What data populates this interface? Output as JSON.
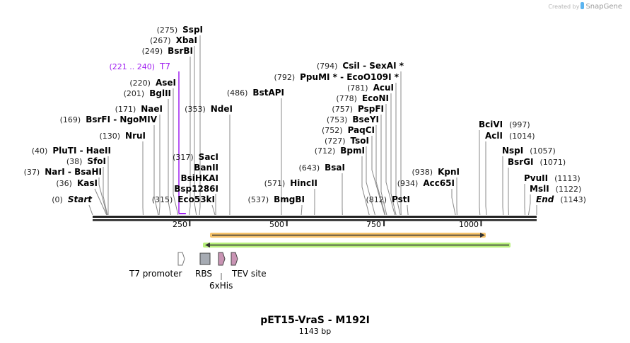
{
  "credit": {
    "prefix": "Created by",
    "brand": "SnapGene"
  },
  "title": "pET15-VraS - M192I",
  "length_label": "1143 bp",
  "sequence_length": 1143,
  "ruler_ticks": [
    "250",
    "500",
    "750",
    "1000"
  ],
  "colors": {
    "purple": "#a020f0",
    "orange_feature": "#f7c46c",
    "green_feature": "#b8f07c",
    "tag_pink": "#c994b4",
    "rbs_gray": "#a6abb3"
  },
  "sites": [
    {
      "pos": 275,
      "num": "(275)",
      "name": "SspI"
    },
    {
      "pos": 267,
      "num": "(267)",
      "name": "XbaI"
    },
    {
      "pos": 249,
      "num": "(249)",
      "name": "BsrBI"
    },
    {
      "pos": 221,
      "num": "(221 .. 240)",
      "name": "T7"
    },
    {
      "pos": 220,
      "num": "(220)",
      "name": "AseI"
    },
    {
      "pos": 201,
      "num": "(201)",
      "name": "BglII"
    },
    {
      "pos": 171,
      "num": "(171)",
      "name": "NaeI"
    },
    {
      "pos": 169,
      "num": "(169)",
      "name": "BsrFI  - NgoMIV"
    },
    {
      "pos": 130,
      "num": "(130)",
      "name": "NruI"
    },
    {
      "pos": 40,
      "num": "(40)",
      "name": "PluTI  - HaeII"
    },
    {
      "pos": 38,
      "num": "(38)",
      "name": "SfoI"
    },
    {
      "pos": 37,
      "num": "(37)",
      "name": "NarI  - BsaHI"
    },
    {
      "pos": 36,
      "num": "(36)",
      "name": "KasI"
    },
    {
      "pos": 0,
      "num": "(0)",
      "name": "Start"
    },
    {
      "pos": 317,
      "num": "(317)",
      "name": "SacI"
    },
    {
      "pos": 317,
      "num": "",
      "name": "BanII"
    },
    {
      "pos": 317,
      "num": "",
      "name": "BsiHKAI"
    },
    {
      "pos": 317,
      "num": "",
      "name": "Bsp1286I"
    },
    {
      "pos": 315,
      "num": "(315)",
      "name": "Eco53kI"
    },
    {
      "pos": 353,
      "num": "(353)",
      "name": "NdeI"
    },
    {
      "pos": 486,
      "num": "(486)",
      "name": "BstAPI"
    },
    {
      "pos": 794,
      "num": "(794)",
      "name": "CsiI  - SexAI *"
    },
    {
      "pos": 792,
      "num": "(792)",
      "name": "PpuMI * - EcoO109I *"
    },
    {
      "pos": 781,
      "num": "(781)",
      "name": "AcuI"
    },
    {
      "pos": 778,
      "num": "(778)",
      "name": "EcoNI"
    },
    {
      "pos": 757,
      "num": "(757)",
      "name": "PspFI"
    },
    {
      "pos": 753,
      "num": "(753)",
      "name": "BseYI"
    },
    {
      "pos": 752,
      "num": "(752)",
      "name": "PaqCI"
    },
    {
      "pos": 727,
      "num": "(727)",
      "name": "TsoI"
    },
    {
      "pos": 712,
      "num": "(712)",
      "name": "BpmI"
    },
    {
      "pos": 643,
      "num": "(643)",
      "name": "BsaI"
    },
    {
      "pos": 571,
      "num": "(571)",
      "name": "HincII"
    },
    {
      "pos": 537,
      "num": "(537)",
      "name": "BmgBI"
    },
    {
      "pos": 812,
      "num": "(812)",
      "name": "PstI"
    },
    {
      "pos": 938,
      "num": "(938)",
      "name": "KpnI"
    },
    {
      "pos": 934,
      "num": "(934)",
      "name": "Acc65I"
    },
    {
      "pos": 997,
      "num": "(997)",
      "name": "BciVI"
    },
    {
      "pos": 1014,
      "num": "(1014)",
      "name": "AclI"
    },
    {
      "pos": 1057,
      "num": "(1057)",
      "name": "NspI"
    },
    {
      "pos": 1071,
      "num": "(1071)",
      "name": "BsrGI"
    },
    {
      "pos": 1113,
      "num": "(1113)",
      "name": "PvuII"
    },
    {
      "pos": 1122,
      "num": "(1122)",
      "name": "MslI"
    },
    {
      "pos": 1143,
      "num": "(1143)",
      "name": "End"
    }
  ],
  "features": [
    {
      "name": "T7 promoter"
    },
    {
      "name": "RBS"
    },
    {
      "name": "6xHis"
    },
    {
      "name": "TEV site"
    }
  ]
}
